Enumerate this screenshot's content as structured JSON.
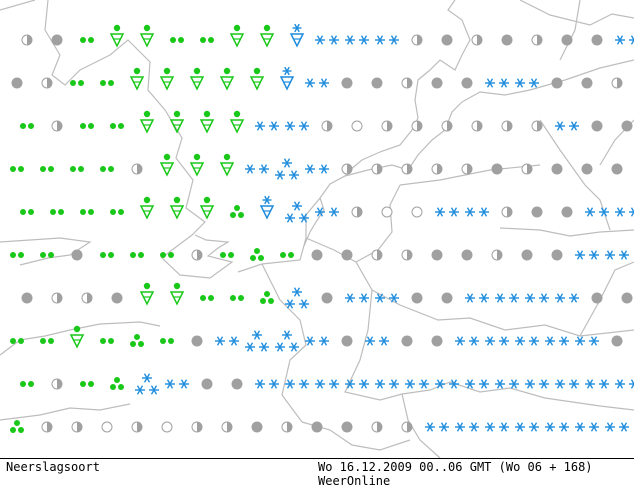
{
  "title": "Neerslagsoort",
  "valid_time": "Wo 16.12.2009 00..06 GMT (Wo 06 + 168)",
  "credit": "WeerOnline",
  "colors": {
    "rain": "#19c819",
    "snow": "#1e8cdc",
    "dry": "#a0a0a0",
    "border": "#bdbdbd"
  },
  "legend_codes": {
    "r": "rain (two dots)",
    "r3": "rain (three dots)",
    "v": "rain shower (triangle)",
    "x": "snow (two stars)",
    "x3": "snow (three stars)",
    "xs": "snow shower",
    "sr": "sleet",
    "o": "dry cloudy",
    "h": "dry half cloudy",
    "c": "dry light cloud"
  },
  "grid_rows": [
    [
      "h",
      "o",
      "r",
      "v",
      "v",
      "r",
      "r",
      "v",
      "v",
      "xs",
      "x",
      "x",
      "x",
      "h",
      "o",
      "h",
      "o",
      "h",
      "o",
      "o",
      "x"
    ],
    [
      "o",
      "h",
      "r",
      "r",
      "v",
      "v",
      "v",
      "v",
      "v",
      "xs",
      "x",
      "o",
      "o",
      "h",
      "o",
      "o",
      "x",
      "x",
      "o",
      "o",
      "h"
    ],
    [
      "r",
      "h",
      "r",
      "r",
      "v",
      "v",
      "v",
      "v",
      "x",
      "x",
      "h",
      "c",
      "h",
      "h",
      "h",
      "h",
      "h",
      "h",
      "x",
      "o",
      "o"
    ],
    [
      "r",
      "r",
      "r",
      "r",
      "h",
      "v",
      "v",
      "v",
      "x",
      "x3",
      "x",
      "h",
      "h",
      "h",
      "h",
      "h",
      "o",
      "h",
      "o",
      "o",
      "o"
    ],
    [
      "r",
      "r",
      "r",
      "r",
      "v",
      "v",
      "v",
      "r3",
      "xs",
      "x3",
      "x",
      "h",
      "c",
      "c",
      "x",
      "x",
      "h",
      "o",
      "o",
      "x",
      "x"
    ],
    [
      "r",
      "r",
      "o",
      "r",
      "r",
      "r",
      "h",
      "r",
      "r3",
      "r",
      "o",
      "o",
      "h",
      "h",
      "o",
      "o",
      "h",
      "o",
      "o",
      "x",
      "x"
    ],
    [
      "o",
      "h",
      "h",
      "o",
      "v",
      "v",
      "r",
      "r",
      "r3",
      "x3",
      "o",
      "x",
      "x",
      "o",
      "o",
      "x",
      "x",
      "x",
      "x",
      "o",
      "o"
    ],
    [
      "r",
      "r",
      "v",
      "r",
      "r3",
      "r",
      "o",
      "x",
      "x3",
      "x3",
      "x",
      "o",
      "x",
      "o",
      "o",
      "x",
      "x",
      "x",
      "x",
      "x",
      "o"
    ],
    [
      "r",
      "h",
      "r",
      "r3",
      "x3",
      "x",
      "o",
      "o",
      "x",
      "x",
      "x",
      "x",
      "x",
      "x",
      "x",
      "x",
      "x",
      "x",
      "x",
      "x",
      "x"
    ],
    [
      "r3",
      "h",
      "h",
      "c",
      "h",
      "c",
      "h",
      "h",
      "o",
      "h",
      "o",
      "o",
      "h",
      "h",
      "x",
      "x",
      "x",
      "x",
      "x",
      "x",
      "x"
    ]
  ]
}
